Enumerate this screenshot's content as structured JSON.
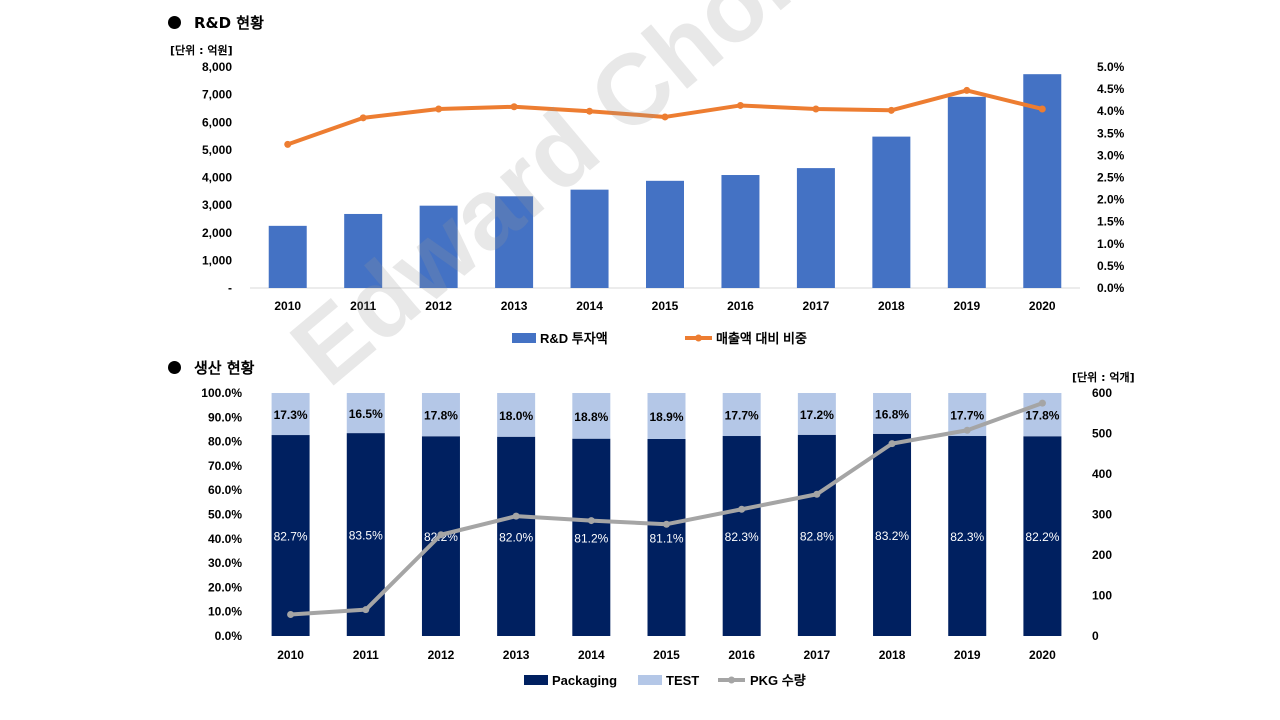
{
  "chart_data": [
    {
      "type": "bar",
      "title": "R&D 현황",
      "unit": "[단위 : 억원]",
      "categories": [
        "2010",
        "2011",
        "2012",
        "2013",
        "2014",
        "2015",
        "2016",
        "2017",
        "2018",
        "2019",
        "2020"
      ],
      "series": [
        {
          "name": "R&D 투자액",
          "kind": "bar",
          "axis": "left",
          "color": "#4472C4",
          "values": [
            2250,
            2680,
            2980,
            3320,
            3560,
            3880,
            4090,
            4340,
            5480,
            6920,
            7740
          ]
        },
        {
          "name": "매출액 대비 비중",
          "kind": "line",
          "axis": "right",
          "color": "#ED7D31",
          "values": [
            3.25,
            3.85,
            4.05,
            4.1,
            4.0,
            3.87,
            4.13,
            4.05,
            4.02,
            4.47,
            4.05
          ]
        }
      ],
      "left_axis": {
        "ylim": [
          0,
          8000
        ],
        "ticks": [
          "-",
          "1,000",
          "2,000",
          "3,000",
          "4,000",
          "5,000",
          "6,000",
          "7,000",
          "8,000"
        ]
      },
      "right_axis": {
        "ylim": [
          0,
          5
        ],
        "ticks": [
          "0.0%",
          "0.5%",
          "1.0%",
          "1.5%",
          "2.0%",
          "2.5%",
          "3.0%",
          "3.5%",
          "4.0%",
          "4.5%",
          "5.0%"
        ]
      },
      "legend_position": "bottom",
      "grid": false
    },
    {
      "type": "bar",
      "stacked": true,
      "title": "생산 현황",
      "unit": "[단위 : 억개]",
      "categories": [
        "2010",
        "2011",
        "2012",
        "2013",
        "2014",
        "2015",
        "2016",
        "2017",
        "2018",
        "2019",
        "2020"
      ],
      "series": [
        {
          "name": "Packaging",
          "kind": "bar",
          "axis": "left",
          "color": "#002060",
          "values": [
            82.7,
            83.5,
            82.2,
            82.0,
            81.2,
            81.1,
            82.3,
            82.8,
            83.2,
            82.3,
            82.2
          ],
          "labels": [
            "82.7%",
            "83.5%",
            "82.2%",
            "82.0%",
            "81.2%",
            "81.1%",
            "82.3%",
            "82.8%",
            "83.2%",
            "82.3%",
            "82.2%"
          ]
        },
        {
          "name": "TEST",
          "kind": "bar",
          "axis": "left",
          "color": "#B4C7E7",
          "values": [
            17.3,
            16.5,
            17.8,
            18.0,
            18.8,
            18.9,
            17.7,
            17.2,
            16.8,
            17.7,
            17.8
          ],
          "labels": [
            "17.3%",
            "16.5%",
            "17.8%",
            "18.0%",
            "18.8%",
            "18.9%",
            "17.7%",
            "17.2%",
            "16.8%",
            "17.7%",
            "17.8%"
          ]
        },
        {
          "name": "PKG 수량",
          "kind": "line",
          "axis": "right",
          "color": "#A5A5A5",
          "values": [
            53,
            65,
            250,
            296,
            285,
            276,
            313,
            350,
            475,
            508,
            575
          ]
        }
      ],
      "left_axis": {
        "ylim": [
          0,
          100
        ],
        "ticks": [
          "0.0%",
          "10.0%",
          "20.0%",
          "30.0%",
          "40.0%",
          "50.0%",
          "60.0%",
          "70.0%",
          "80.0%",
          "90.0%",
          "100.0%"
        ]
      },
      "right_axis": {
        "ylim": [
          0,
          600
        ],
        "ticks": [
          "0",
          "100",
          "200",
          "300",
          "400",
          "500",
          "600"
        ]
      },
      "legend_position": "bottom",
      "grid": false
    }
  ],
  "watermark": "Edward Choi"
}
